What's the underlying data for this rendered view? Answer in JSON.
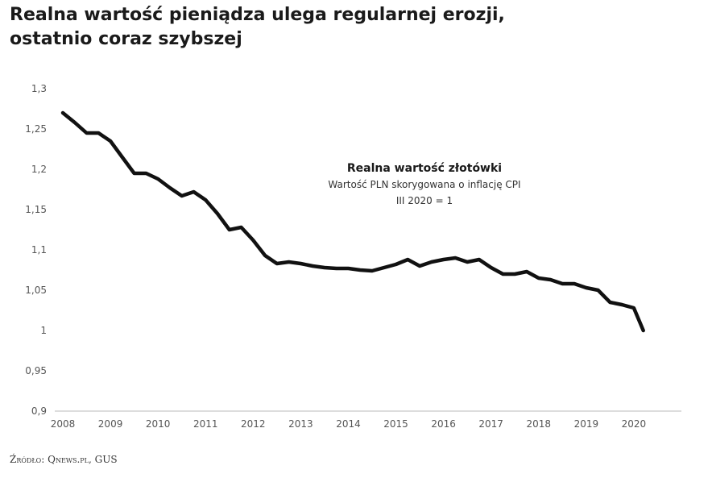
{
  "headline": {
    "line1": "Realna wartość pieniądza ulega regularnej erozji,",
    "line2": "ostatnio coraz szybszej"
  },
  "source": "Źródło: Qnews.pl, GUS",
  "colors": {
    "line": "#111111",
    "axis": "#bbbbbb",
    "text": "#1a1a1a"
  },
  "chart_data": {
    "type": "line",
    "title": "Realna wartość złotówki",
    "subtitle": "Wartość PLN skorygowana o inflację CPI",
    "subtitle2": "III 2020 = 1",
    "xlabel": "",
    "ylabel": "",
    "xlim": [
      2008,
      2021
    ],
    "ylim": [
      0.9,
      1.3
    ],
    "grid": false,
    "x_ticks": [
      "2008",
      "2009",
      "2010",
      "2011",
      "2012",
      "2013",
      "2014",
      "2015",
      "2016",
      "2017",
      "2018",
      "2019",
      "2020"
    ],
    "y_ticks": [
      "0,9",
      "0,95",
      "1",
      "1,05",
      "1,1",
      "1,15",
      "1,2",
      "1,25",
      "1,3"
    ],
    "y_tick_values": [
      0.9,
      0.95,
      1.0,
      1.05,
      1.1,
      1.15,
      1.2,
      1.25,
      1.3
    ],
    "series": [
      {
        "x": [
          2008.0,
          2008.25,
          2008.5,
          2008.75,
          2009.0,
          2009.25,
          2009.5,
          2009.75,
          2010.0,
          2010.25,
          2010.5,
          2010.75,
          2011.0,
          2011.25,
          2011.5,
          2011.75,
          2012.0,
          2012.25,
          2012.5,
          2012.75,
          2013.0,
          2013.25,
          2013.5,
          2013.75,
          2014.0,
          2014.25,
          2014.5,
          2014.75,
          2015.0,
          2015.25,
          2015.5,
          2015.75,
          2016.0,
          2016.25,
          2016.5,
          2016.75,
          2017.0,
          2017.25,
          2017.5,
          2017.75,
          2018.0,
          2018.25,
          2018.5,
          2018.75,
          2019.0,
          2019.25,
          2019.5,
          2019.75,
          2020.0,
          2020.2
        ],
        "values": [
          1.27,
          1.258,
          1.245,
          1.245,
          1.235,
          1.215,
          1.195,
          1.195,
          1.188,
          1.177,
          1.167,
          1.172,
          1.162,
          1.145,
          1.125,
          1.128,
          1.112,
          1.093,
          1.083,
          1.085,
          1.083,
          1.08,
          1.078,
          1.077,
          1.077,
          1.075,
          1.074,
          1.078,
          1.082,
          1.088,
          1.08,
          1.085,
          1.088,
          1.09,
          1.085,
          1.088,
          1.078,
          1.07,
          1.07,
          1.073,
          1.065,
          1.063,
          1.058,
          1.058,
          1.053,
          1.05,
          1.035,
          1.032,
          1.028,
          1.0
        ]
      }
    ]
  }
}
